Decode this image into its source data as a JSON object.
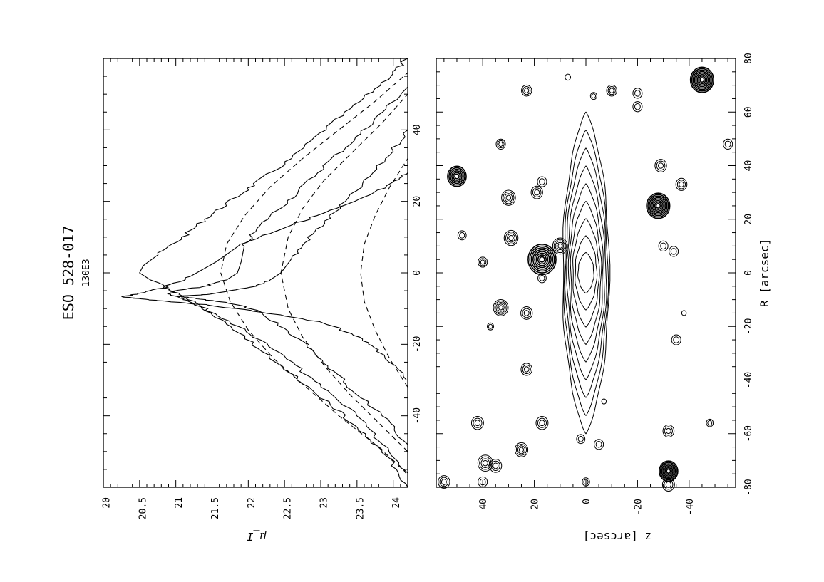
{
  "title": {
    "galaxy": "ESO 528-017",
    "id": "130E3"
  },
  "chart_data": [
    {
      "type": "line",
      "panel": "profiles",
      "xlabel": "",
      "ylabel": "μ_I",
      "xlim": [
        -60,
        60
      ],
      "ylim": [
        20,
        24.2
      ],
      "xticks": [
        -40,
        -20,
        0,
        20,
        40
      ],
      "yticks": [
        "20",
        "20.5",
        "21",
        "21.5",
        "22",
        "22.5",
        "23",
        "23.5",
        "24"
      ],
      "series": [
        {
          "style": "solid",
          "points": [
            [
              -60,
              24.2
            ],
            [
              -52,
              23.95
            ],
            [
              -45,
              23.6
            ],
            [
              -38,
              23.2
            ],
            [
              -30,
              22.7
            ],
            [
              -22,
              22.2
            ],
            [
              -15,
              21.75
            ],
            [
              -10,
              21.4
            ],
            [
              -6,
              21.05
            ],
            [
              -4,
              20.85
            ],
            [
              -2,
              20.65
            ],
            [
              0,
              20.5
            ],
            [
              2,
              20.55
            ],
            [
              5,
              20.75
            ],
            [
              10,
              21.1
            ],
            [
              15,
              21.4
            ],
            [
              20,
              21.75
            ],
            [
              25,
              22.1
            ],
            [
              32,
              22.6
            ],
            [
              40,
              23.05
            ],
            [
              48,
              23.55
            ],
            [
              55,
              23.95
            ],
            [
              60,
              24.2
            ]
          ]
        },
        {
          "style": "solid",
          "points": [
            [
              -56,
              24.2
            ],
            [
              -48,
              23.85
            ],
            [
              -40,
              23.5
            ],
            [
              -32,
              23.0
            ],
            [
              -25,
              22.6
            ],
            [
              -18,
              22.1
            ],
            [
              -12,
              21.6
            ],
            [
              -8,
              21.2
            ],
            [
              -6,
              20.9
            ],
            [
              -5,
              21.0
            ],
            [
              -4,
              21.35
            ],
            [
              -2,
              21.7
            ],
            [
              0,
              21.85
            ],
            [
              3,
              21.9
            ],
            [
              8,
              21.95
            ],
            [
              15,
              22.25
            ],
            [
              22,
              22.65
            ],
            [
              30,
              23.05
            ],
            [
              38,
              23.5
            ],
            [
              45,
              23.85
            ],
            [
              52,
              24.2
            ]
          ]
        },
        {
          "style": "solid",
          "points": [
            [
              -48,
              24.2
            ],
            [
              -40,
              23.85
            ],
            [
              -32,
              23.4
            ],
            [
              -26,
              23.1
            ],
            [
              -20,
              22.8
            ],
            [
              -14,
              22.4
            ],
            [
              -10,
              22.05
            ],
            [
              -8,
              21.6
            ],
            [
              -7,
              21.2
            ],
            [
              -6.5,
              21.05
            ],
            [
              -6,
              21.5
            ],
            [
              -4,
              22.05
            ],
            [
              -2,
              22.3
            ],
            [
              0,
              22.45
            ],
            [
              4,
              22.6
            ],
            [
              10,
              22.85
            ],
            [
              16,
              23.15
            ],
            [
              24,
              23.55
            ],
            [
              32,
              23.9
            ],
            [
              40,
              24.2
            ]
          ]
        },
        {
          "style": "solid",
          "points": [
            [
              -30,
              24.2
            ],
            [
              -22,
              23.8
            ],
            [
              -18,
              23.55
            ],
            [
              -14,
              23.05
            ],
            [
              -11,
              22.2
            ],
            [
              -9,
              21.45
            ],
            [
              -8,
              20.9
            ],
            [
              -7.2,
              20.45
            ],
            [
              -6.6,
              20.25
            ],
            [
              -6,
              20.45
            ],
            [
              -4,
              20.85
            ],
            [
              -1,
              21.2
            ],
            [
              3,
              21.55
            ],
            [
              8,
              21.9
            ],
            [
              12,
              22.4
            ],
            [
              16,
              22.95
            ],
            [
              20,
              23.5
            ],
            [
              25,
              24.0
            ],
            [
              28,
              24.2
            ]
          ]
        },
        {
          "style": "dashed",
          "points": [
            [
              -56,
              24.2
            ],
            [
              -48,
              23.75
            ],
            [
              -40,
              23.25
            ],
            [
              -32,
              22.8
            ],
            [
              -24,
              22.35
            ],
            [
              -16,
              22.0
            ],
            [
              -8,
              21.75
            ],
            [
              0,
              21.62
            ],
            [
              8,
              21.7
            ],
            [
              16,
              21.95
            ],
            [
              24,
              22.3
            ],
            [
              32,
              22.75
            ],
            [
              40,
              23.25
            ],
            [
              48,
              23.75
            ],
            [
              56,
              24.2
            ]
          ]
        },
        {
          "style": "dashed",
          "points": [
            [
              -50,
              24.2
            ],
            [
              -42,
              23.8
            ],
            [
              -34,
              23.4
            ],
            [
              -26,
              23.05
            ],
            [
              -18,
              22.75
            ],
            [
              -10,
              22.55
            ],
            [
              0,
              22.45
            ],
            [
              10,
              22.55
            ],
            [
              18,
              22.75
            ],
            [
              26,
              23.05
            ],
            [
              34,
              23.45
            ],
            [
              42,
              23.85
            ],
            [
              50,
              24.2
            ]
          ]
        },
        {
          "style": "dashed",
          "points": [
            [
              -32,
              24.2
            ],
            [
              -24,
              23.95
            ],
            [
              -16,
              23.75
            ],
            [
              -8,
              23.6
            ],
            [
              0,
              23.55
            ],
            [
              8,
              23.6
            ],
            [
              16,
              23.75
            ],
            [
              24,
              23.95
            ],
            [
              32,
              24.2
            ]
          ]
        }
      ]
    },
    {
      "type": "contour",
      "panel": "image",
      "xlabel": "R [arcsec]",
      "ylabel": "z [arcsec]",
      "xlim": [
        -80,
        80
      ],
      "ylim": [
        -58,
        58
      ],
      "xticks": [
        -80,
        -60,
        -40,
        -20,
        0,
        20,
        40,
        60,
        80
      ],
      "yticks": [
        -40,
        -20,
        0,
        20,
        40
      ],
      "galaxy": {
        "center": [
          0,
          0
        ],
        "semi_major": 60,
        "semi_minor": 9,
        "levels": 9
      },
      "sources": [
        {
          "R": -71,
          "z": 39,
          "r": 3.2,
          "n": 4
        },
        {
          "R": -72,
          "z": 35,
          "r": 2.6,
          "n": 3
        },
        {
          "R": -66,
          "z": 25,
          "r": 2.8,
          "n": 4
        },
        {
          "R": -56,
          "z": 17,
          "r": 2.6,
          "n": 3
        },
        {
          "R": -56,
          "z": 42,
          "r": 2.6,
          "n": 3
        },
        {
          "R": -78,
          "z": 55,
          "r": 2.5,
          "n": 3
        },
        {
          "R": -78,
          "z": 40,
          "r": 2,
          "n": 2
        },
        {
          "R": -62,
          "z": 2,
          "r": 1.8,
          "n": 2
        },
        {
          "R": -36,
          "z": 23,
          "r": 2.4,
          "n": 3
        },
        {
          "R": -20,
          "z": 37,
          "r": 1.4,
          "n": 2
        },
        {
          "R": -13,
          "z": 33,
          "r": 3.2,
          "n": 5
        },
        {
          "R": -15,
          "z": 23,
          "r": 2.5,
          "n": 3
        },
        {
          "R": -2,
          "z": 17,
          "r": 1.8,
          "n": 2
        },
        {
          "R": 5,
          "z": 17,
          "r": 6,
          "n": 8
        },
        {
          "R": 10,
          "z": 10,
          "r": 3.2,
          "n": 5
        },
        {
          "R": 13,
          "z": 29,
          "r": 3,
          "n": 4
        },
        {
          "R": 4,
          "z": 40,
          "r": 2,
          "n": 3
        },
        {
          "R": 14,
          "z": 48,
          "r": 1.8,
          "n": 2
        },
        {
          "R": 28,
          "z": 30,
          "r": 3,
          "n": 4
        },
        {
          "R": 30,
          "z": 19,
          "r": 2.5,
          "n": 3
        },
        {
          "R": 36,
          "z": 50,
          "r": 4,
          "n": 6
        },
        {
          "R": 34,
          "z": 17,
          "r": 2,
          "n": 2
        },
        {
          "R": 48,
          "z": 33,
          "r": 2,
          "n": 3
        },
        {
          "R": 68,
          "z": 23,
          "r": 2.2,
          "n": 3
        },
        {
          "R": 73,
          "z": 7,
          "r": 1.2,
          "n": 1
        },
        {
          "R": 66,
          "z": -3,
          "r": 1.4,
          "n": 2
        },
        {
          "R": 68,
          "z": -10,
          "r": 2.2,
          "n": 3
        },
        {
          "R": 67,
          "z": -20,
          "r": 2,
          "n": 2
        },
        {
          "R": 62,
          "z": -20,
          "r": 2,
          "n": 2
        },
        {
          "R": 72,
          "z": -45,
          "r": 5,
          "n": 8
        },
        {
          "R": 48,
          "z": -55,
          "r": 2,
          "n": 2
        },
        {
          "R": 40,
          "z": -29,
          "r": 2.5,
          "n": 3
        },
        {
          "R": 33,
          "z": -37,
          "r": 2.4,
          "n": 3
        },
        {
          "R": 25,
          "z": -28,
          "r": 5,
          "n": 8
        },
        {
          "R": 10,
          "z": -30,
          "r": 2,
          "n": 2
        },
        {
          "R": 8,
          "z": -34,
          "r": 2,
          "n": 2
        },
        {
          "R": -15,
          "z": -38,
          "r": 1,
          "n": 1
        },
        {
          "R": -59,
          "z": -32,
          "r": 2.4,
          "n": 3
        },
        {
          "R": -74,
          "z": -32,
          "r": 4,
          "n": 7
        },
        {
          "R": -79,
          "z": -32,
          "r": 2.6,
          "n": 3
        },
        {
          "R": -56,
          "z": -48,
          "r": 1.5,
          "n": 2
        },
        {
          "R": -64,
          "z": -5,
          "r": 2,
          "n": 2
        },
        {
          "R": -48,
          "z": -7,
          "r": 1,
          "n": 1
        },
        {
          "R": -78,
          "z": 0,
          "r": 1.6,
          "n": 2
        },
        {
          "R": -25,
          "z": -35,
          "r": 2,
          "n": 2
        }
      ]
    }
  ]
}
